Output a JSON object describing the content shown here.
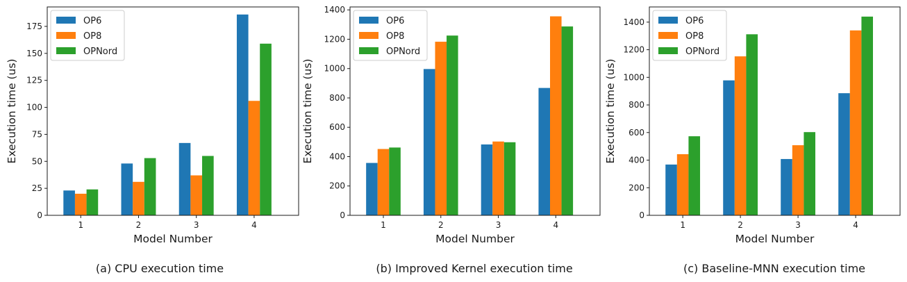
{
  "figure": {
    "colors": {
      "OP6": "#1f77b4",
      "OP8": "#ff7f0e",
      "OPNord": "#2ca02c"
    }
  },
  "chart_data": [
    {
      "type": "bar",
      "caption": "(a) CPU execution time",
      "xlabel": "Model Number",
      "ylabel": "Execution time (us)",
      "categories": [
        "1",
        "2",
        "3",
        "4"
      ],
      "ylim": [
        0,
        193
      ],
      "yticks": [
        0,
        25,
        50,
        75,
        100,
        125,
        150,
        175
      ],
      "legend_position": "top-left",
      "grid": false,
      "series": [
        {
          "name": "OP6",
          "values": [
            23,
            48,
            67,
            186
          ]
        },
        {
          "name": "OP8",
          "values": [
            20,
            31,
            37,
            106
          ]
        },
        {
          "name": "OPNord",
          "values": [
            24,
            53,
            55,
            159
          ]
        }
      ]
    },
    {
      "type": "bar",
      "caption": "(b) Improved Kernel execution time",
      "xlabel": "Model Number",
      "ylabel": "Execution time (us)",
      "categories": [
        "1",
        "2",
        "3",
        "4"
      ],
      "ylim": [
        0,
        1420
      ],
      "yticks": [
        0,
        200,
        400,
        600,
        800,
        1000,
        1200,
        1400
      ],
      "legend_position": "top-left",
      "grid": false,
      "series": [
        {
          "name": "OP6",
          "values": [
            357,
            997,
            483,
            868
          ]
        },
        {
          "name": "OP8",
          "values": [
            452,
            1183,
            503,
            1356
          ]
        },
        {
          "name": "OPNord",
          "values": [
            462,
            1225,
            498,
            1287
          ]
        }
      ]
    },
    {
      "type": "bar",
      "caption": "(c) Baseline-MNN execution time",
      "xlabel": "Model Number",
      "ylabel": "Execution time (us)",
      "categories": [
        "1",
        "2",
        "3",
        "4"
      ],
      "ylim": [
        0,
        1510
      ],
      "yticks": [
        0,
        200,
        400,
        600,
        800,
        1000,
        1200,
        1400
      ],
      "legend_position": "top-left",
      "grid": false,
      "series": [
        {
          "name": "OP6",
          "values": [
            368,
            978,
            408,
            885
          ]
        },
        {
          "name": "OP8",
          "values": [
            443,
            1152,
            508,
            1340
          ]
        },
        {
          "name": "OPNord",
          "values": [
            573,
            1312,
            603,
            1440
          ]
        }
      ]
    }
  ]
}
